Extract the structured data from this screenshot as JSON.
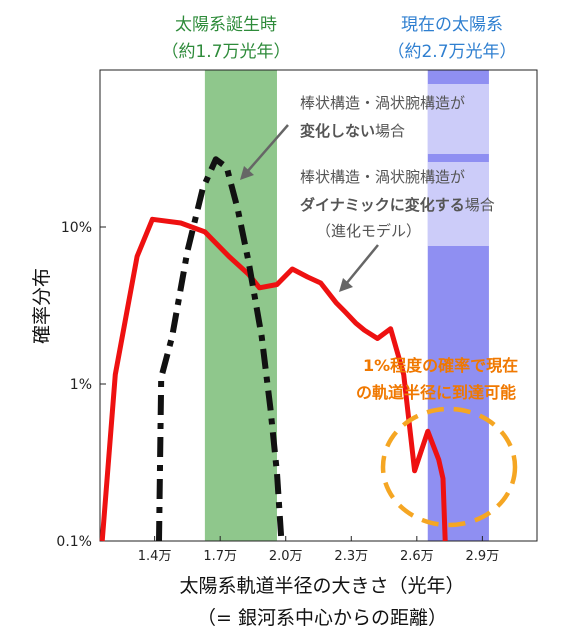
{
  "chart_data": {
    "type": "line",
    "title": "",
    "xlabel": "太陽系軌道半径の大きさ（光年）",
    "xlabel_sub": "（= 銀河系中心からの距離）",
    "ylabel": "確率分布",
    "x_scale": "linear",
    "y_scale": "log",
    "xlim": [
      11500,
      31500
    ],
    "ylim": [
      0.1,
      100
    ],
    "x_ticks": [
      {
        "value": 14000,
        "label": "1.4万"
      },
      {
        "value": 17000,
        "label": "1.7万"
      },
      {
        "value": 20000,
        "label": "2.0万"
      },
      {
        "value": 23000,
        "label": "2.3万"
      },
      {
        "value": 26000,
        "label": "2.6万"
      },
      {
        "value": 29000,
        "label": "2.9万"
      }
    ],
    "y_ticks": [
      {
        "value": 0.1,
        "label": "0.1%"
      },
      {
        "value": 1,
        "label": "1%"
      },
      {
        "value": 10,
        "label": "10%"
      }
    ],
    "series": [
      {
        "name": "",
        "style": "solid",
        "color": "#ee1111",
        "points": [
          [
            11600,
            0.1
          ],
          [
            12200,
            1.15
          ],
          [
            13200,
            6.5
          ],
          [
            13900,
            11.2
          ],
          [
            15200,
            10.6
          ],
          [
            16300,
            9.3
          ],
          [
            17400,
            6.5
          ],
          [
            18300,
            5.0
          ],
          [
            18800,
            4.1
          ],
          [
            19600,
            4.3
          ],
          [
            20300,
            5.4
          ],
          [
            21000,
            4.8
          ],
          [
            21600,
            4.4
          ],
          [
            22300,
            3.3
          ],
          [
            22700,
            2.9
          ],
          [
            23200,
            2.45
          ],
          [
            23600,
            2.2
          ],
          [
            24200,
            1.95
          ],
          [
            24800,
            2.25
          ],
          [
            25400,
            1.15
          ],
          [
            25900,
            0.28
          ],
          [
            26500,
            0.5
          ],
          [
            27000,
            0.33
          ],
          [
            27200,
            0.25
          ],
          [
            27300,
            0.1
          ]
        ]
      },
      {
        "name": "",
        "style": "dashdot",
        "color": "#111111",
        "points": [
          [
            14200,
            0.1
          ],
          [
            14300,
            1.1
          ],
          [
            14800,
            2.0
          ],
          [
            15500,
            7.0
          ],
          [
            16200,
            17.5
          ],
          [
            16800,
            27.0
          ],
          [
            17300,
            24.0
          ],
          [
            17800,
            13.0
          ],
          [
            18300,
            6.0
          ],
          [
            18900,
            2.0
          ],
          [
            19300,
            0.7
          ],
          [
            19600,
            0.27
          ],
          [
            19800,
            0.1
          ]
        ]
      }
    ],
    "bands": [
      {
        "x0": 16300,
        "x1": 19600,
        "color": "#8fc78c",
        "label1": "太陽系誕生時",
        "label2": "（約1.7万光年）"
      },
      {
        "x0": 26500,
        "x1": 29300,
        "color": "#8f8ff2",
        "label1": "現在の太陽系",
        "label2": "（約2.7万光年）"
      }
    ],
    "annotations": [
      {
        "line1": "棒状構造・渦状腕構造が",
        "line2_bold": "変化しない",
        "line2_rest": "場合"
      },
      {
        "line1": "棒状構造・渦状腕構造が",
        "line2_bold": "ダイナミックに変化する",
        "line2_rest": "場合",
        "line3": "（進化モデル）"
      },
      {
        "line1": "1%程度の確率で現在",
        "line2": "の軌道半径に到達可能"
      }
    ],
    "grid": false,
    "legend": "none"
  }
}
